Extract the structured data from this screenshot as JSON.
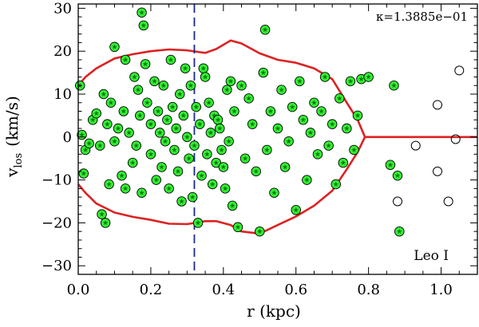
{
  "chart_data": {
    "type": "scatter",
    "title": "",
    "xlabel": "r (kpc)",
    "ylabel_main": "v",
    "ylabel_sub": "los",
    "ylabel_unit": "(km/s)",
    "xlim": [
      0.0,
      1.1
    ],
    "ylim": [
      -32,
      31
    ],
    "x_ticks": [
      0.0,
      0.2,
      0.4,
      0.6,
      0.8,
      1.0
    ],
    "x_tick_labels": [
      "0.0",
      "0.2",
      "0.4",
      "0.6",
      "0.8",
      "1.0"
    ],
    "y_ticks": [
      -30,
      -20,
      -10,
      0,
      10,
      20,
      30
    ],
    "y_tick_labels": [
      "−30",
      "−20",
      "−10",
      "0",
      "10",
      "20",
      "30"
    ],
    "annotation_kappa": "κ=1.3885e−01",
    "annotation_galaxy": "Leo I",
    "vline_x": 0.32,
    "colors": {
      "envelope": "#dd2222",
      "vline": "#1a2a8a",
      "member_fill": "#33ee33",
      "member_star": "#0a7a0a",
      "marker_edge": "#000000"
    },
    "envelope_upper": [
      [
        0.0,
        12
      ],
      [
        0.02,
        14
      ],
      [
        0.05,
        16
      ],
      [
        0.1,
        18.3
      ],
      [
        0.15,
        19.3
      ],
      [
        0.2,
        20
      ],
      [
        0.25,
        20.4
      ],
      [
        0.3,
        20.2
      ],
      [
        0.35,
        19.6
      ],
      [
        0.38,
        20.5
      ],
      [
        0.42,
        22.5
      ],
      [
        0.45,
        21.8
      ],
      [
        0.5,
        19.5
      ],
      [
        0.55,
        18
      ],
      [
        0.6,
        17.3
      ],
      [
        0.65,
        16
      ],
      [
        0.7,
        13.5
      ],
      [
        0.74,
        8
      ],
      [
        0.77,
        4
      ],
      [
        0.79,
        0
      ]
    ],
    "envelope_lower": [
      [
        0.0,
        -11
      ],
      [
        0.02,
        -13
      ],
      [
        0.05,
        -15.5
      ],
      [
        0.1,
        -17.6
      ],
      [
        0.15,
        -18.6
      ],
      [
        0.2,
        -19.3
      ],
      [
        0.25,
        -20.2
      ],
      [
        0.3,
        -20.3
      ],
      [
        0.35,
        -19.6
      ],
      [
        0.38,
        -19.6
      ],
      [
        0.42,
        -20.5
      ],
      [
        0.45,
        -22
      ],
      [
        0.5,
        -22.5
      ],
      [
        0.55,
        -20.5
      ],
      [
        0.6,
        -18.5
      ],
      [
        0.65,
        -16
      ],
      [
        0.7,
        -12.5
      ],
      [
        0.74,
        -7.5
      ],
      [
        0.77,
        -3.5
      ],
      [
        0.79,
        0
      ]
    ],
    "envelope_tail": [
      [
        0.79,
        0
      ],
      [
        1.1,
        0
      ]
    ],
    "members": [
      [
        0.005,
        12
      ],
      [
        0.01,
        0.5
      ],
      [
        0.015,
        -8.5
      ],
      [
        0.02,
        -3
      ],
      [
        0.03,
        -1.5
      ],
      [
        0.04,
        4
      ],
      [
        0.05,
        5.5
      ],
      [
        0.06,
        -2
      ],
      [
        0.065,
        -18
      ],
      [
        0.07,
        10
      ],
      [
        0.075,
        -20
      ],
      [
        0.08,
        3
      ],
      [
        0.085,
        -11
      ],
      [
        0.09,
        8
      ],
      [
        0.1,
        21
      ],
      [
        0.1,
        -1
      ],
      [
        0.11,
        2
      ],
      [
        0.12,
        -9
      ],
      [
        0.125,
        6
      ],
      [
        0.13,
        18
      ],
      [
        0.13,
        -12
      ],
      [
        0.14,
        1
      ],
      [
        0.15,
        -6
      ],
      [
        0.155,
        14
      ],
      [
        0.16,
        -2
      ],
      [
        0.165,
        11
      ],
      [
        0.17,
        5
      ],
      [
        0.175,
        29
      ],
      [
        0.175,
        -13
      ],
      [
        0.18,
        26
      ],
      [
        0.185,
        17
      ],
      [
        0.19,
        8
      ],
      [
        0.2,
        -4
      ],
      [
        0.2,
        3
      ],
      [
        0.21,
        13
      ],
      [
        0.215,
        -10
      ],
      [
        0.22,
        6
      ],
      [
        0.225,
        1
      ],
      [
        0.23,
        -7
      ],
      [
        0.235,
        12
      ],
      [
        0.24,
        -1
      ],
      [
        0.245,
        4
      ],
      [
        0.25,
        -12
      ],
      [
        0.255,
        18
      ],
      [
        0.26,
        7
      ],
      [
        0.265,
        -3
      ],
      [
        0.27,
        2
      ],
      [
        0.275,
        -8
      ],
      [
        0.28,
        10
      ],
      [
        0.285,
        -15
      ],
      [
        0.29,
        5
      ],
      [
        0.295,
        16
      ],
      [
        0.3,
        0
      ],
      [
        0.305,
        -5
      ],
      [
        0.31,
        12
      ],
      [
        0.315,
        -14
      ],
      [
        0.32,
        -2
      ],
      [
        0.325,
        7
      ],
      [
        0.33,
        -20
      ],
      [
        0.335,
        3
      ],
      [
        0.34,
        -9
      ],
      [
        0.345,
        16
      ],
      [
        0.35,
        14
      ],
      [
        0.355,
        -4
      ],
      [
        0.36,
        8
      ],
      [
        0.365,
        1
      ],
      [
        0.37,
        -11
      ],
      [
        0.375,
        5
      ],
      [
        0.38,
        -6
      ],
      [
        0.385,
        4
      ],
      [
        0.39,
        2
      ],
      [
        0.395,
        -3
      ],
      [
        0.4,
        -7
      ],
      [
        0.405,
        -12
      ],
      [
        0.41,
        11
      ],
      [
        0.415,
        -1
      ],
      [
        0.42,
        13
      ],
      [
        0.425,
        -16
      ],
      [
        0.43,
        6
      ],
      [
        0.44,
        -21
      ],
      [
        0.45,
        12
      ],
      [
        0.46,
        -5
      ],
      [
        0.47,
        9
      ],
      [
        0.48,
        3
      ],
      [
        0.49,
        -8
      ],
      [
        0.5,
        -22
      ],
      [
        0.51,
        15
      ],
      [
        0.515,
        25
      ],
      [
        0.52,
        -3
      ],
      [
        0.53,
        6
      ],
      [
        0.54,
        -13
      ],
      [
        0.55,
        2
      ],
      [
        0.56,
        11
      ],
      [
        0.57,
        -7
      ],
      [
        0.58,
        -1
      ],
      [
        0.59,
        7
      ],
      [
        0.6,
        -17
      ],
      [
        0.61,
        13
      ],
      [
        0.62,
        4
      ],
      [
        0.63,
        -10
      ],
      [
        0.64,
        1
      ],
      [
        0.65,
        8
      ],
      [
        0.66,
        -4
      ],
      [
        0.67,
        6
      ],
      [
        0.68,
        14
      ],
      [
        0.69,
        -2
      ],
      [
        0.7,
        3
      ],
      [
        0.71,
        -11
      ],
      [
        0.72,
        9
      ],
      [
        0.73,
        -6
      ],
      [
        0.74,
        2
      ],
      [
        0.75,
        13
      ],
      [
        0.76,
        -3
      ],
      [
        0.77,
        5
      ],
      [
        0.78,
        13.5
      ],
      [
        0.8,
        14
      ],
      [
        0.86,
        -6.5
      ],
      [
        0.87,
        12
      ],
      [
        0.88,
        -9
      ],
      [
        0.885,
        -22
      ]
    ],
    "nonmembers": [
      [
        0.88,
        -15
      ],
      [
        0.93,
        -2
      ],
      [
        0.99,
        7.5
      ],
      [
        0.99,
        -8
      ],
      [
        1.02,
        -15
      ],
      [
        1.04,
        -0.5
      ],
      [
        1.05,
        15.5
      ]
    ]
  }
}
